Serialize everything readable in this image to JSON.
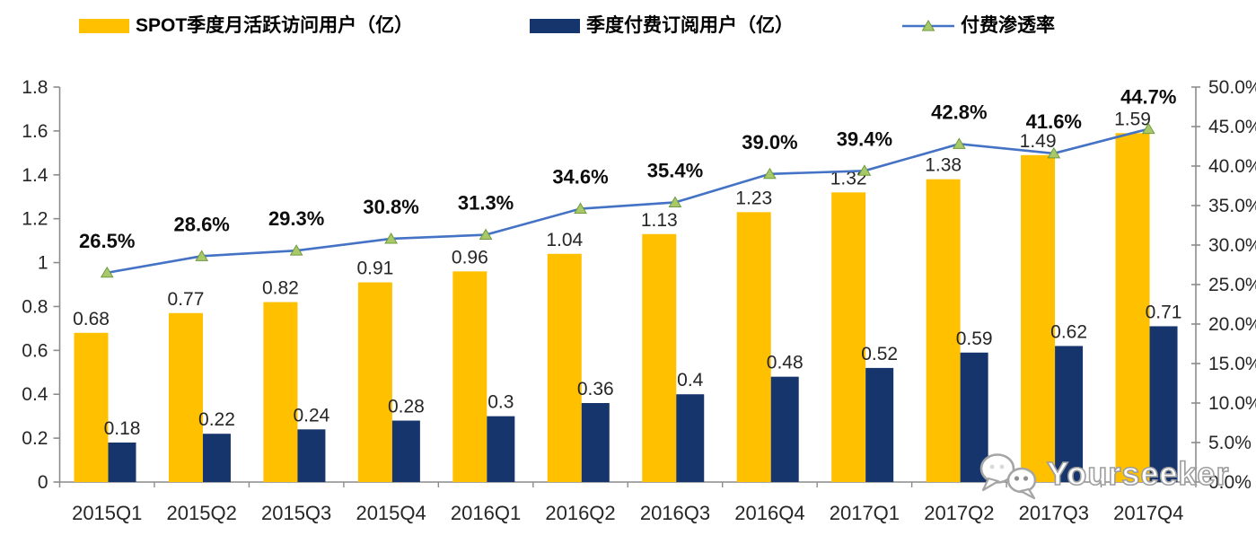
{
  "legend": {
    "items": [
      {
        "label": "SPOT季度月活跃访问用户（亿）",
        "swatch": "bar",
        "color": "#FFC000"
      },
      {
        "label": "季度付费订阅用户（亿）",
        "swatch": "bar",
        "color": "#17356D"
      },
      {
        "label": "付费渗透率",
        "swatch": "line",
        "color": "#4472C4",
        "marker_fill": "#A9C86A",
        "marker_stroke": "#6E9B3E"
      }
    ]
  },
  "chart_data": {
    "type": "bar",
    "subtype": "combo-bar-line-dual-axis",
    "categories": [
      "2015Q1",
      "2015Q2",
      "2015Q3",
      "2015Q4",
      "2016Q1",
      "2016Q2",
      "2016Q3",
      "2016Q4",
      "2017Q1",
      "2017Q2",
      "2017Q3",
      "2017Q4"
    ],
    "series": [
      {
        "name": "SPOT季度月活跃访问用户（亿）",
        "type": "bar",
        "axis": "left",
        "color": "#FFC000",
        "values": [
          0.68,
          0.77,
          0.82,
          0.91,
          0.96,
          1.04,
          1.13,
          1.23,
          1.32,
          1.38,
          1.49,
          1.59
        ],
        "labels": [
          "0.68",
          "0.77",
          "0.82",
          "0.91",
          "0.96",
          "1.04",
          "1.13",
          "1.23",
          "1.32",
          "1.38",
          "1.49",
          "1.59"
        ]
      },
      {
        "name": "季度付费订阅用户（亿）",
        "type": "bar",
        "axis": "left",
        "color": "#17356D",
        "values": [
          0.18,
          0.22,
          0.24,
          0.28,
          0.3,
          0.36,
          0.4,
          0.48,
          0.52,
          0.59,
          0.62,
          0.71
        ],
        "labels": [
          "0.18",
          "0.22",
          "0.24",
          "0.28",
          "0.3",
          "0.36",
          "0.4",
          "0.48",
          "0.52",
          "0.59",
          "0.62",
          "0.71"
        ]
      },
      {
        "name": "付费渗透率",
        "type": "line",
        "axis": "right",
        "color": "#4472C4",
        "marker": "triangle",
        "marker_fill": "#A9C86A",
        "marker_stroke": "#6E9B3E",
        "values": [
          26.5,
          28.6,
          29.3,
          30.8,
          31.3,
          34.6,
          35.4,
          39.0,
          39.4,
          42.8,
          41.6,
          44.7
        ],
        "labels": [
          "26.5%",
          "28.6%",
          "29.3%",
          "30.8%",
          "31.3%",
          "34.6%",
          "35.4%",
          "39.0%",
          "39.4%",
          "42.8%",
          "41.6%",
          "44.7%"
        ]
      }
    ],
    "left_axis": {
      "min": 0,
      "max": 1.8,
      "step": 0.2,
      "tick_labels": [
        "0",
        "0.2",
        "0.4",
        "0.6",
        "0.8",
        "1",
        "1.2",
        "1.4",
        "1.6",
        "1.8"
      ]
    },
    "right_axis": {
      "min": 0,
      "max": 50,
      "step": 5,
      "tick_labels": [
        "0.0%",
        "5.0%",
        "10.0%",
        "15.0%",
        "20.0%",
        "25.0%",
        "30.0%",
        "35.0%",
        "40.0%",
        "45.0%",
        "50.0%"
      ]
    },
    "grid": false,
    "legend_position": "top",
    "axis_color": "#8C8C8C"
  },
  "watermark": {
    "text": "Yourseeker",
    "icon": "wechat-chat-bubbles"
  }
}
